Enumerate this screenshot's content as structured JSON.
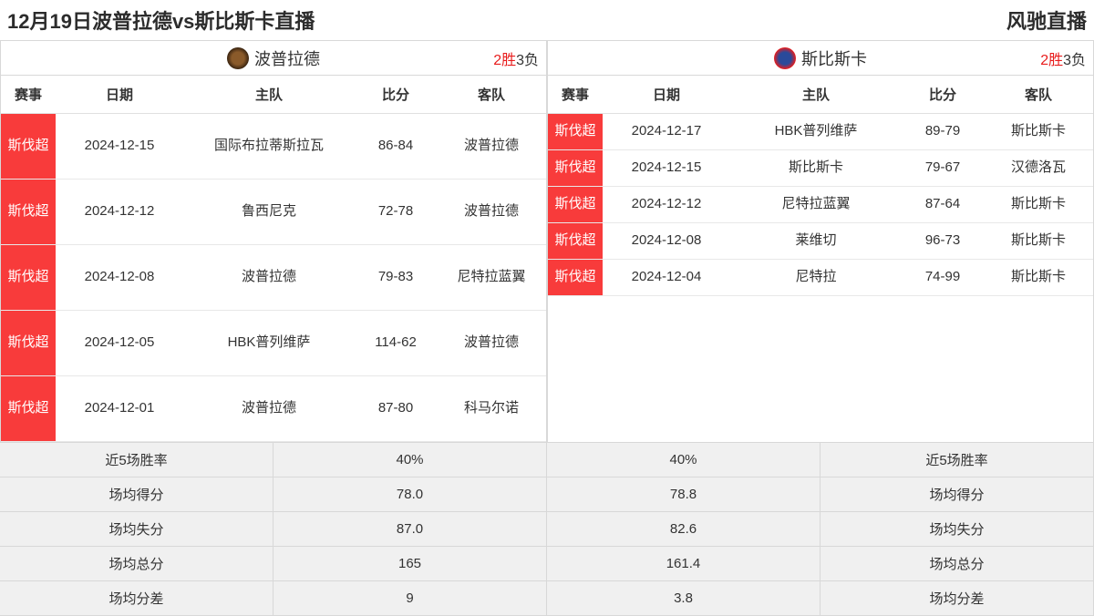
{
  "header": {
    "title": "12月19日波普拉德vs斯比斯卡直播",
    "brand": "风驰直播"
  },
  "colors": {
    "league_tag_bg": "#f83b3b",
    "league_tag_text": "#ffffff",
    "win_text": "#e81c1c",
    "stats_bg": "#f0f0f0",
    "border": "#d8d8d8"
  },
  "columns": {
    "league": "赛事",
    "date": "日期",
    "home": "主队",
    "score": "比分",
    "away": "客队"
  },
  "left": {
    "team_name": "波普拉德",
    "record_wins": "2胜",
    "record_losses": "3负",
    "games": [
      {
        "league": "斯伐超",
        "date": "2024-12-15",
        "home": "国际布拉蒂斯拉瓦",
        "score": "86-84",
        "away": "波普拉德"
      },
      {
        "league": "斯伐超",
        "date": "2024-12-12",
        "home": "鲁西尼克",
        "score": "72-78",
        "away": "波普拉德"
      },
      {
        "league": "斯伐超",
        "date": "2024-12-08",
        "home": "波普拉德",
        "score": "79-83",
        "away": "尼特拉蓝翼"
      },
      {
        "league": "斯伐超",
        "date": "2024-12-05",
        "home": "HBK普列维萨",
        "score": "114-62",
        "away": "波普拉德"
      },
      {
        "league": "斯伐超",
        "date": "2024-12-01",
        "home": "波普拉德",
        "score": "87-80",
        "away": "科马尔诺"
      }
    ],
    "stats": [
      {
        "label": "近5场胜率",
        "value": "40%"
      },
      {
        "label": "场均得分",
        "value": "78.0"
      },
      {
        "label": "场均失分",
        "value": "87.0"
      },
      {
        "label": "场均总分",
        "value": "165"
      },
      {
        "label": "场均分差",
        "value": "9"
      }
    ]
  },
  "right": {
    "team_name": "斯比斯卡",
    "record_wins": "2胜",
    "record_losses": "3负",
    "games": [
      {
        "league": "斯伐超",
        "date": "2024-12-17",
        "home": "HBK普列维萨",
        "score": "89-79",
        "away": "斯比斯卡"
      },
      {
        "league": "斯伐超",
        "date": "2024-12-15",
        "home": "斯比斯卡",
        "score": "79-67",
        "away": "汉德洛瓦"
      },
      {
        "league": "斯伐超",
        "date": "2024-12-12",
        "home": "尼特拉蓝翼",
        "score": "87-64",
        "away": "斯比斯卡"
      },
      {
        "league": "斯伐超",
        "date": "2024-12-08",
        "home": "莱维切",
        "score": "96-73",
        "away": "斯比斯卡"
      },
      {
        "league": "斯伐超",
        "date": "2024-12-04",
        "home": "尼特拉",
        "score": "74-99",
        "away": "斯比斯卡"
      }
    ],
    "stats": [
      {
        "value": "40%",
        "label": "近5场胜率"
      },
      {
        "value": "78.8",
        "label": "场均得分"
      },
      {
        "value": "82.6",
        "label": "场均失分"
      },
      {
        "value": "161.4",
        "label": "场均总分"
      },
      {
        "value": "3.8",
        "label": "场均分差"
      }
    ]
  }
}
